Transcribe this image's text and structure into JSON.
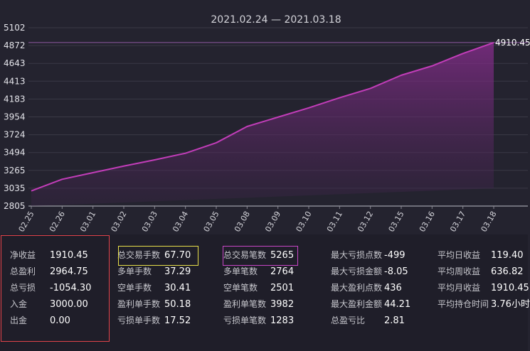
{
  "chart_data": {
    "type": "area",
    "title": "2021.02.24 — 2021.03.18",
    "yticks": [
      "5102",
      "4872",
      "4643",
      "4413",
      "4183",
      "3954",
      "3724",
      "3494",
      "3265",
      "3035",
      "2805"
    ],
    "ylim": [
      2805,
      5102
    ],
    "xticks": [
      "02.25",
      "02.26",
      "03.01",
      "03.02",
      "03.03",
      "03.04",
      "03.05",
      "03.08",
      "03.09",
      "03.10",
      "03.11",
      "03.12",
      "03.15",
      "03.16",
      "03.17",
      "03.18"
    ],
    "x": [
      "02.25",
      "02.26",
      "03.01",
      "03.02",
      "03.03",
      "03.04",
      "03.05",
      "03.08",
      "03.09",
      "03.10",
      "03.11",
      "03.12",
      "03.15",
      "03.16",
      "03.17",
      "03.18"
    ],
    "values": [
      3000,
      3150,
      3235,
      3320,
      3400,
      3485,
      3620,
      3830,
      3950,
      4070,
      4200,
      4320,
      4490,
      4610,
      4770,
      4910.45
    ],
    "end_label": "4910.45",
    "colors": {
      "line": "#c23db9",
      "fill": "#7a2a86",
      "reference": "#8f5aa3"
    }
  },
  "stats": {
    "col1": [
      {
        "label": "净收益",
        "value": "1910.45"
      },
      {
        "label": "总盈利",
        "value": "2964.75"
      },
      {
        "label": "总亏损",
        "value": "-1054.30"
      },
      {
        "label": "入金",
        "value": "3000.00"
      },
      {
        "label": "出金",
        "value": "0.00"
      }
    ],
    "col2": [
      {
        "label": "总交易手数",
        "value": "67.70"
      },
      {
        "label": "多单手数",
        "value": "37.29"
      },
      {
        "label": "空单手数",
        "value": "30.41"
      },
      {
        "label": "盈利单手数",
        "value": "50.18"
      },
      {
        "label": "亏损单手数",
        "value": "17.52"
      }
    ],
    "col3": [
      {
        "label": "总交易笔数",
        "value": "5265"
      },
      {
        "label": "多单笔数",
        "value": "2764"
      },
      {
        "label": "空单笔数",
        "value": "2501"
      },
      {
        "label": "盈利单笔数",
        "value": "3982"
      },
      {
        "label": "亏损单笔数",
        "value": "1283"
      }
    ],
    "col4": [
      {
        "label": "最大亏损点数",
        "value": "-499"
      },
      {
        "label": "最大亏损金额",
        "value": "-8.05"
      },
      {
        "label": "最大盈利点数",
        "value": "436"
      },
      {
        "label": "最大盈利金额",
        "value": "44.21"
      },
      {
        "label": "总盈亏比",
        "value": "2.81"
      }
    ],
    "col5": [
      {
        "label": "平均日收益",
        "value": "119.40"
      },
      {
        "label": "平均周收益",
        "value": "636.82"
      },
      {
        "label": "平均月收益",
        "value": "1910.45"
      },
      {
        "label": "平均持仓时间",
        "value": "3.76小时"
      }
    ]
  },
  "highlight_colors": {
    "red": "#e0434a",
    "yellow": "#e8e04a",
    "magenta": "#c846c6"
  }
}
